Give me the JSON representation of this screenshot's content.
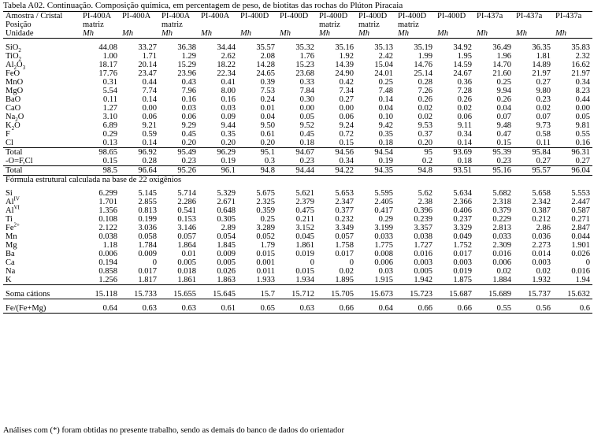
{
  "caption": "Tabela A02. Continuação. Composição química, em percentagem de peso, de biotitas das rochas do Plúton Piracaia",
  "header": {
    "row1": [
      "Amostra / Cristal",
      "PI-400A",
      "PI-400A",
      "PI-400A",
      "PI-400A",
      "PI-400D",
      "PI-400D",
      "PI-400D",
      "PI-400D",
      "PI-400D",
      "PI-400D",
      "PI-437a",
      "PI-437a",
      "PI-437a"
    ],
    "row2": [
      "Posição",
      "matriz",
      "",
      "matriz",
      "",
      "",
      "",
      "matriz",
      "matriz",
      "matriz",
      "",
      "",
      "",
      ""
    ],
    "row3": [
      "Unidade",
      "Mh",
      "Mh",
      "Mh",
      "Mh",
      "Mh",
      "Mh",
      "Mh",
      "Mh",
      "Mh",
      "Mh",
      "Mh",
      "Mh",
      "Mh"
    ]
  },
  "oxides": [
    {
      "label": "SiO",
      "sub": "2",
      "values": [
        "44.08",
        "33.27",
        "36.38",
        "34.44",
        "35.57",
        "35.32",
        "35.16",
        "35.13",
        "35.19",
        "34.92",
        "36.49",
        "36.35",
        "35.83"
      ]
    },
    {
      "label": "TiO",
      "sub": "2",
      "values": [
        "1.00",
        "1.71",
        "1.29",
        "2.62",
        "2.08",
        "1.76",
        "1.92",
        "2.42",
        "1.99",
        "1.95",
        "1.96",
        "1.81",
        "2.32"
      ]
    },
    {
      "label": "Al",
      "sub": "2",
      "label2": "O",
      "sub2": "3",
      "values": [
        "18.17",
        "20.14",
        "15.29",
        "18.22",
        "14.28",
        "15.23",
        "14.39",
        "15.04",
        "14.76",
        "14.59",
        "14.70",
        "14.89",
        "16.62"
      ]
    },
    {
      "label": "FeO",
      "values": [
        "17.76",
        "23.47",
        "23.96",
        "22.34",
        "24.65",
        "23.68",
        "24.90",
        "24.01",
        "25.14",
        "24.67",
        "21.60",
        "21.97",
        "21.97"
      ]
    },
    {
      "label": "MnO",
      "values": [
        "0.31",
        "0.44",
        "0.43",
        "0.41",
        "0.39",
        "0.33",
        "0.42",
        "0.25",
        "0.28",
        "0.36",
        "0.25",
        "0.27",
        "0.34"
      ]
    },
    {
      "label": "MgO",
      "values": [
        "5.54",
        "7.74",
        "7.96",
        "8.00",
        "7.53",
        "7.84",
        "7.34",
        "7.48",
        "7.26",
        "7.28",
        "9.94",
        "9.80",
        "8.23"
      ]
    },
    {
      "label": "BaO",
      "values": [
        "0.11",
        "0.14",
        "0.16",
        "0.16",
        "0.24",
        "0.30",
        "0.27",
        "0.14",
        "0.26",
        "0.26",
        "0.26",
        "0.23",
        "0.44"
      ]
    },
    {
      "label": "CaO",
      "values": [
        "1.27",
        "0.00",
        "0.03",
        "0.03",
        "0.01",
        "0.00",
        "0.00",
        "0.04",
        "0.02",
        "0.02",
        "0.04",
        "0.02",
        "0.00"
      ]
    },
    {
      "label": "Na",
      "sub": "2",
      "label2": "O",
      "values": [
        "3.10",
        "0.06",
        "0.06",
        "0.09",
        "0.04",
        "0.05",
        "0.06",
        "0.10",
        "0.02",
        "0.06",
        "0.07",
        "0.07",
        "0.05"
      ]
    },
    {
      "label": "K",
      "sub": "2",
      "label2": "O",
      "values": [
        "6.89",
        "9.21",
        "9.29",
        "9.44",
        "9.50",
        "9.52",
        "9.24",
        "9.42",
        "9.53",
        "9.11",
        "9.48",
        "9.73",
        "9.81"
      ]
    },
    {
      "label": "F",
      "values": [
        "0.29",
        "0.59",
        "0.45",
        "0.35",
        "0.61",
        "0.45",
        "0.72",
        "0.35",
        "0.37",
        "0.34",
        "0.47",
        "0.58",
        "0.55"
      ]
    },
    {
      "label": "Cl",
      "values": [
        "0.13",
        "0.14",
        "0.20",
        "0.20",
        "0.20",
        "0.18",
        "0.15",
        "0.18",
        "0.20",
        "0.14",
        "0.15",
        "0.11",
        "0.16"
      ]
    },
    {
      "label": "Total",
      "values": [
        "98.65",
        "96.92",
        "95.49",
        "96.29",
        "95.1",
        "94.67",
        "94.56",
        "94.54",
        "95",
        "93.69",
        "95.39",
        "95.84",
        "96.31"
      ],
      "ruleTop": true
    },
    {
      "label": " -O=F,Cl",
      "values": [
        "0.15",
        "0.28",
        "0.23",
        "0.19",
        "0.3",
        "0.23",
        "0.34",
        "0.19",
        "0.2",
        "0.18",
        "0.23",
        "0.27",
        "0.27"
      ]
    },
    {
      "label": "Total",
      "values": [
        "98.5",
        "96.64",
        "95.26",
        "96.1",
        "94.8",
        "94.44",
        "94.22",
        "94.35",
        "94.8",
        "93.51",
        "95.16",
        "95.57",
        "96.04"
      ],
      "ruleTop": true,
      "ruleBot": true
    }
  ],
  "formula_title": "Fórmula estrutural calculada na base de 22 oxigênios",
  "cations": [
    {
      "label": "Si",
      "values": [
        "6.299",
        "5.145",
        "5.714",
        "5.329",
        "5.675",
        "5.621",
        "5.653",
        "5.595",
        "5.62",
        "5.634",
        "5.682",
        "5.658",
        "5.553"
      ]
    },
    {
      "label": "Al",
      "sup": "IV",
      "values": [
        "1.701",
        "2.855",
        "2.286",
        "2.671",
        "2.325",
        "2.379",
        "2.347",
        "2.405",
        "2.38",
        "2.366",
        "2.318",
        "2.342",
        "2.447"
      ]
    },
    {
      "label": "Al",
      "sup": "VI",
      "values": [
        "1.356",
        "0.813",
        "0.541",
        "0.648",
        "0.359",
        "0.475",
        "0.377",
        "0.417",
        "0.396",
        "0.406",
        "0.379",
        "0.387",
        "0.587"
      ]
    },
    {
      "label": "Ti",
      "values": [
        "0.108",
        "0.199",
        "0.153",
        "0.305",
        "0.25",
        "0.211",
        "0.232",
        "0.29",
        "0.239",
        "0.237",
        "0.229",
        "0.212",
        "0.271"
      ]
    },
    {
      "label": "Fe",
      "sup": "2+",
      "values": [
        "2.122",
        "3.036",
        "3.146",
        "2.89",
        "3.289",
        "3.152",
        "3.349",
        "3.199",
        "3.357",
        "3.329",
        "2.813",
        "2.86",
        "2.847"
      ]
    },
    {
      "label": "Mn",
      "values": [
        "0.038",
        "0.058",
        "0.057",
        "0.054",
        "0.052",
        "0.045",
        "0.057",
        "0.033",
        "0.038",
        "0.049",
        "0.033",
        "0.036",
        "0.044"
      ]
    },
    {
      "label": "Mg",
      "values": [
        "1.18",
        "1.784",
        "1.864",
        "1.845",
        "1.79",
        "1.861",
        "1.758",
        "1.775",
        "1.727",
        "1.752",
        "2.309",
        "2.273",
        "1.901"
      ]
    },
    {
      "label": "Ba",
      "values": [
        "0.006",
        "0.009",
        "0.01",
        "0.009",
        "0.015",
        "0.019",
        "0.017",
        "0.008",
        "0.016",
        "0.017",
        "0.016",
        "0.014",
        "0.026"
      ]
    },
    {
      "label": "Ca",
      "values": [
        "0.194",
        "0",
        "0.005",
        "0.005",
        "0.001",
        "0",
        "0",
        "0.006",
        "0.003",
        "0.003",
        "0.006",
        "0.003",
        "0"
      ]
    },
    {
      "label": "Na",
      "values": [
        "0.858",
        "0.017",
        "0.018",
        "0.026",
        "0.011",
        "0.015",
        "0.02",
        "0.03",
        "0.005",
        "0.019",
        "0.02",
        "0.02",
        "0.016"
      ]
    },
    {
      "label": "K",
      "values": [
        "1.256",
        "1.817",
        "1.861",
        "1.863",
        "1.933",
        "1.934",
        "1.895",
        "1.915",
        "1.942",
        "1.875",
        "1.884",
        "1.932",
        "1.94"
      ],
      "ruleBot": true
    }
  ],
  "soma": {
    "label": "Soma cátions",
    "values": [
      "15.118",
      "15.733",
      "15.655",
      "15.645",
      "15.7",
      "15.712",
      "15.705",
      "15.673",
      "15.723",
      "15.687",
      "15.689",
      "15.737",
      "15.632"
    ]
  },
  "ratio": {
    "label": "Fe/(Fe+Mg)",
    "values": [
      "0.64",
      "0.63",
      "0.63",
      "0.61",
      "0.65",
      "0.63",
      "0.66",
      "0.64",
      "0.66",
      "0.66",
      "0.55",
      "0.56",
      "0.6"
    ]
  },
  "footnote": "Análises com (*) foram obtidas no presente trabalho, sendo as demais do banco de dados do orientador"
}
